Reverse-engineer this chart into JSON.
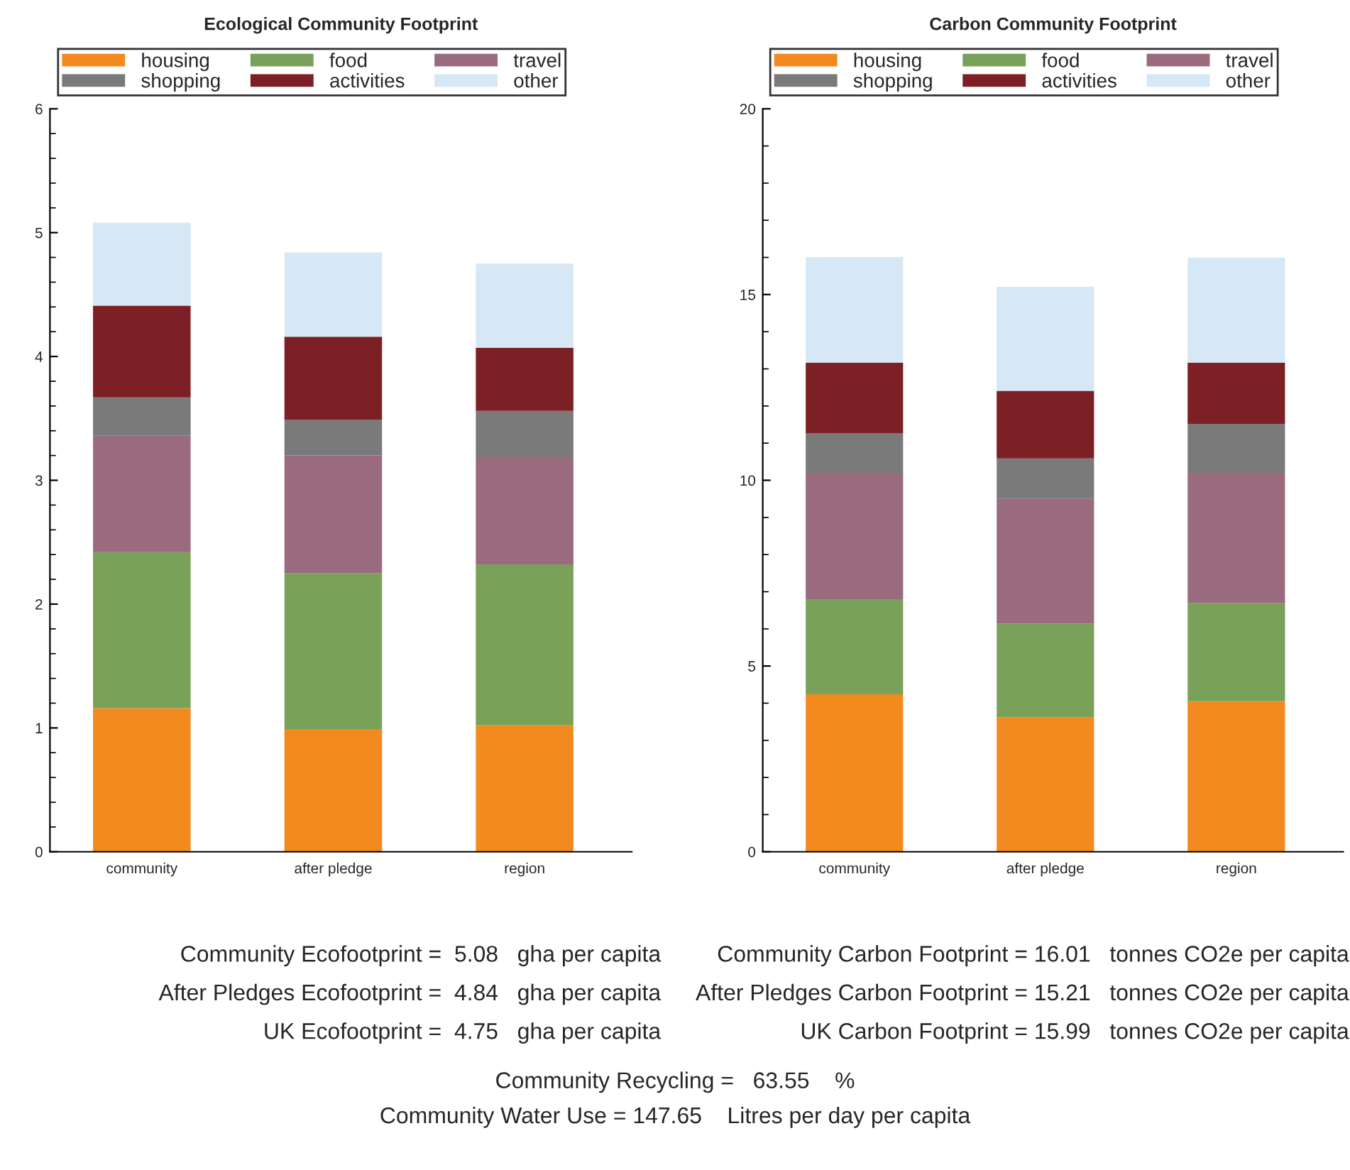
{
  "chart_data": [
    {
      "type": "bar",
      "title": "Ecological Community Footprint",
      "categories": [
        "community",
        "after pledge",
        "region"
      ],
      "stacked": true,
      "legend": "top",
      "ylim": [
        0,
        6
      ],
      "yticks": [
        0,
        1,
        2,
        3,
        4,
        5,
        6
      ],
      "series": [
        {
          "name": "housing",
          "color": "#f28a1f",
          "values": [
            1.16,
            0.99,
            1.02
          ]
        },
        {
          "name": "food",
          "color": "#7aa159",
          "values": [
            1.26,
            1.26,
            1.3
          ]
        },
        {
          "name": "travel",
          "color": "#9a6a7e",
          "values": [
            0.94,
            0.95,
            0.86
          ]
        },
        {
          "name": "shopping",
          "color": "#7a7a7a",
          "values": [
            0.31,
            0.29,
            0.38
          ]
        },
        {
          "name": "activities",
          "color": "#7d2025",
          "values": [
            0.74,
            0.67,
            0.51
          ]
        },
        {
          "name": "other",
          "color": "#d6e8f5",
          "values": [
            0.67,
            0.68,
            0.68
          ]
        }
      ],
      "annotations": [
        "Community Ecofootprint =  5.08   gha per capita",
        "After Pledges Ecofootprint =  4.84   gha per capita",
        "UK Ecofootprint =  4.75   gha per capita"
      ]
    },
    {
      "type": "bar",
      "title": "Carbon Community Footprint",
      "categories": [
        "community",
        "after pledge",
        "region"
      ],
      "stacked": true,
      "legend": "top",
      "ylim": [
        0,
        20
      ],
      "yticks": [
        0,
        5,
        10,
        15,
        20
      ],
      "series": [
        {
          "name": "housing",
          "color": "#f28a1f",
          "values": [
            4.24,
            3.62,
            4.05
          ]
        },
        {
          "name": "food",
          "color": "#7aa159",
          "values": [
            2.56,
            2.52,
            2.65
          ]
        },
        {
          "name": "travel",
          "color": "#9a6a7e",
          "values": [
            3.38,
            3.36,
            3.48
          ]
        },
        {
          "name": "shopping",
          "color": "#7a7a7a",
          "values": [
            1.09,
            1.09,
            1.34
          ]
        },
        {
          "name": "activities",
          "color": "#7d2025",
          "values": [
            1.9,
            1.82,
            1.65
          ]
        },
        {
          "name": "other",
          "color": "#d6e8f5",
          "values": [
            2.84,
            2.8,
            2.82
          ]
        }
      ],
      "annotations": [
        "Community Carbon Footprint = 16.01   tonnes CO2e per capita",
        "After Pledges Carbon Footprint = 15.21   tonnes CO2e per capita",
        "UK Carbon Footprint = 15.99   tonnes CO2e per capita"
      ]
    },
    {
      "type": "other",
      "annotations": [
        "Community Recycling =   63.55    %",
        "Community Water Use = 147.65    Litres per day per capita"
      ]
    }
  ]
}
